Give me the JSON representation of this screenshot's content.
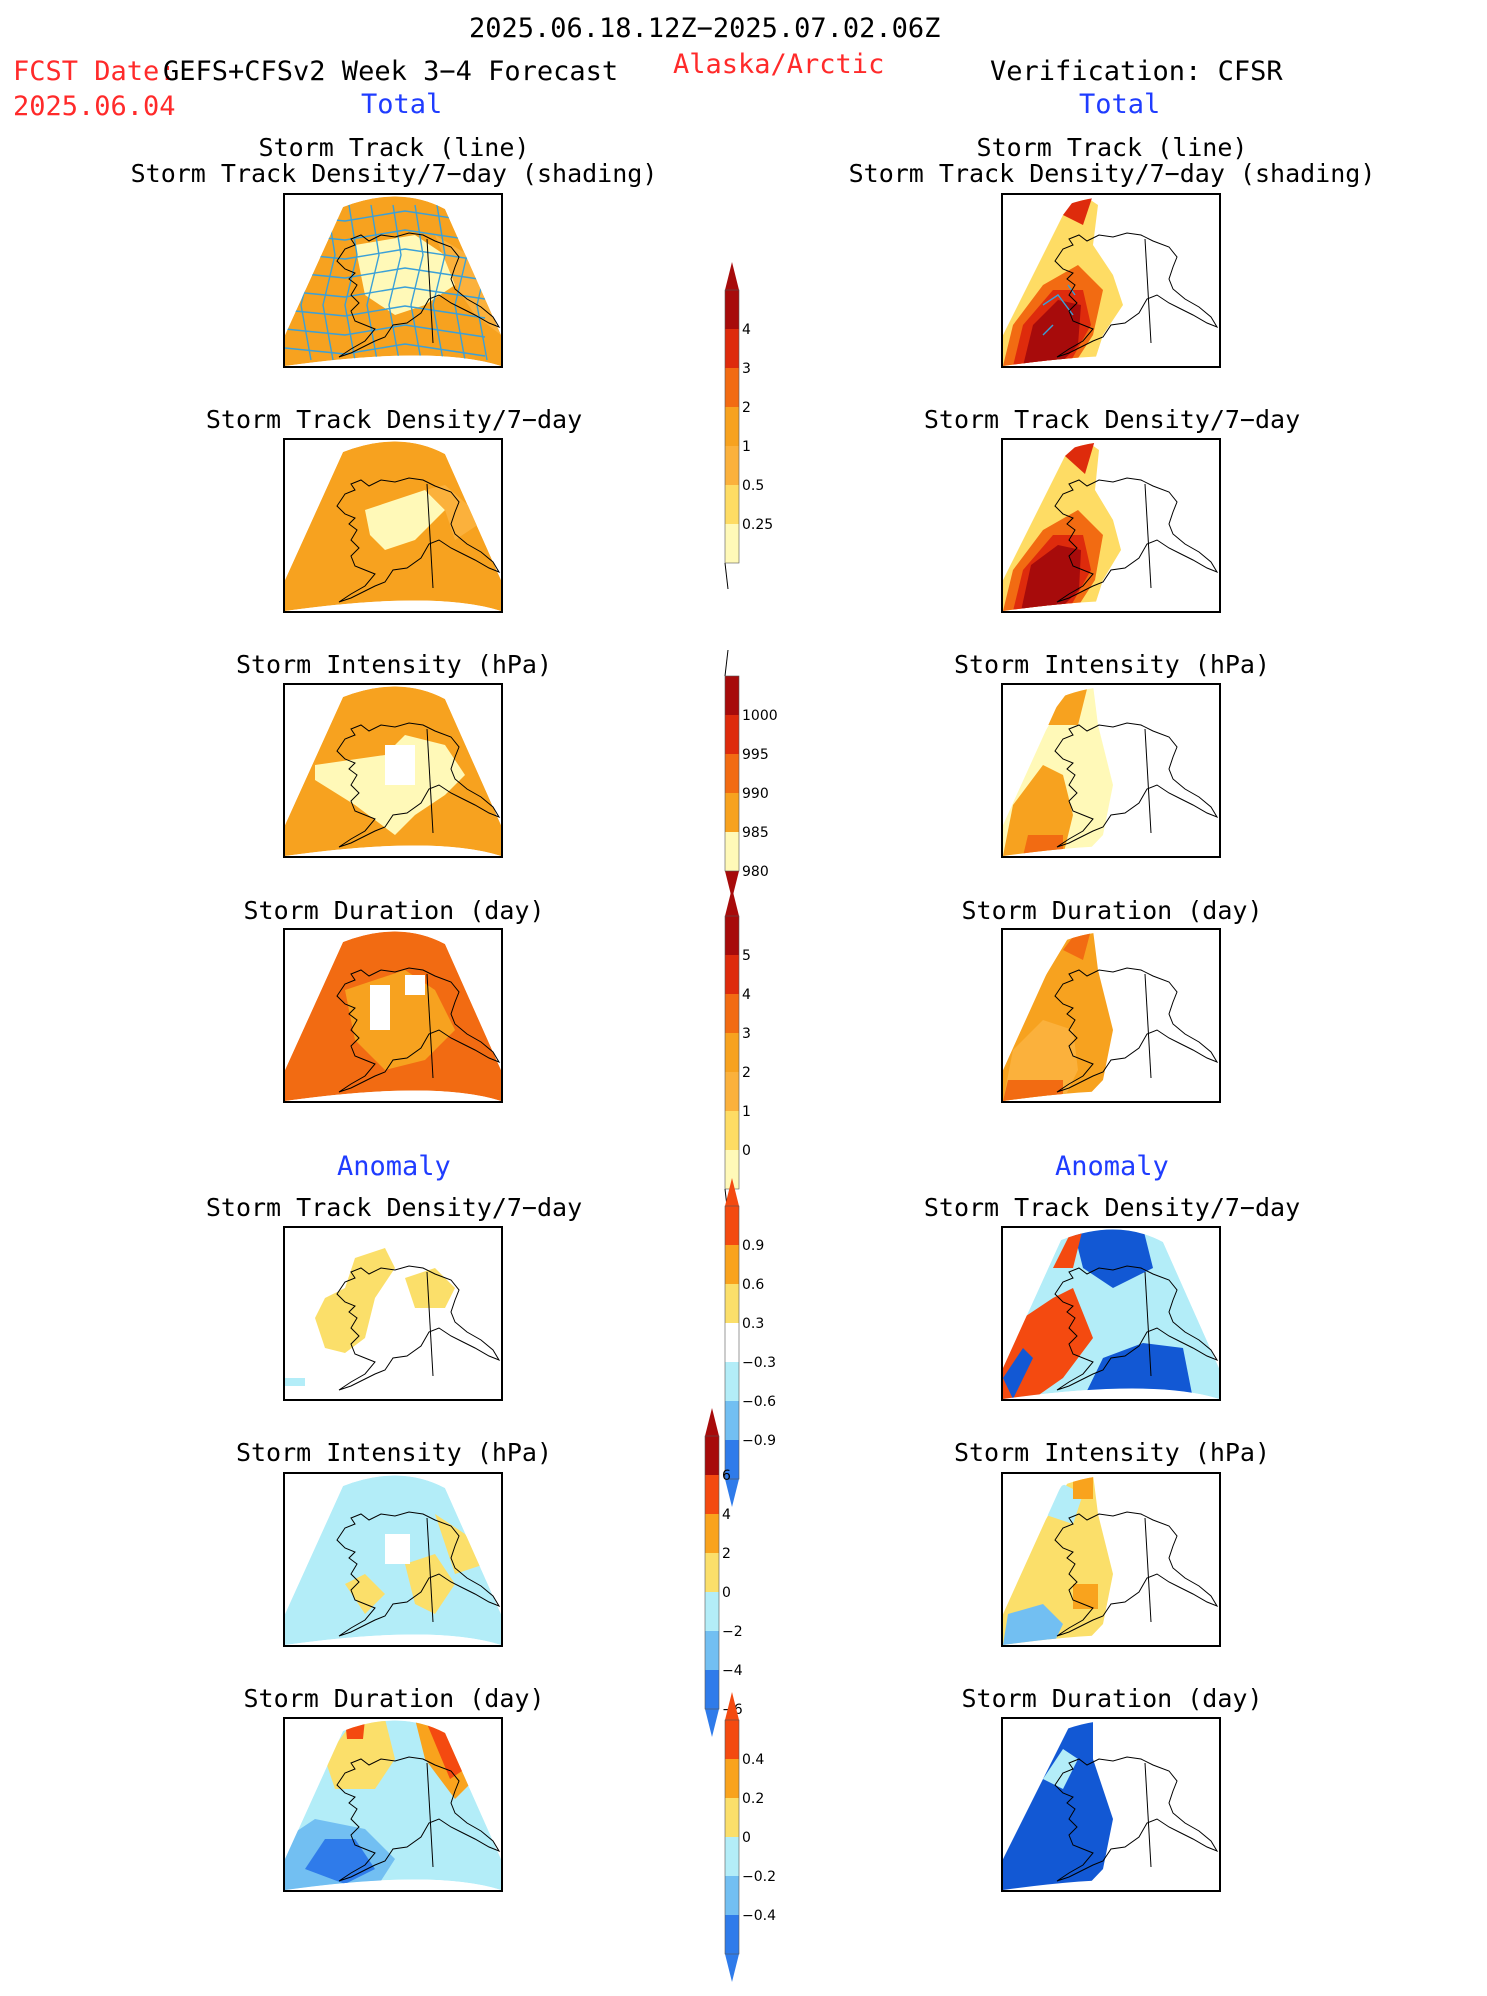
{
  "header": {
    "date_range": "2025.06.18.12Z−2025.07.02.06Z",
    "fcst_label": "FCST Date:",
    "fcst_model": "GEFS+CFSv2 Week 3−4 Forecast",
    "fcst_date": "2025.06.04",
    "region": "Alaska/Arctic",
    "verification": "Verification: CFSR"
  },
  "sections": {
    "total_left": "Total",
    "total_right": "Total",
    "anomaly_left": "Anomaly",
    "anomaly_right": "Anomaly"
  },
  "titles": {
    "track_line": "Storm Track (line)",
    "track_shading": "Storm Track Density/7−day (shading)",
    "density": "Storm Track Density/7−day",
    "intensity": "Storm Intensity (hPa)",
    "duration": "Storm Duration (day)"
  },
  "colors": {
    "c1": "#fff9b8",
    "c2": "#fedc64",
    "c3": "#fbb13c",
    "c4": "#f7a21f",
    "c5": "#f26b12",
    "c6": "#de2b0c",
    "c7": "#a70b0b",
    "a_pos1": "#fbdf6a",
    "a_pos2": "#f9a31d",
    "a_pos3": "#f44a10",
    "a_neg1": "#b3edf8",
    "a_neg2": "#72bff2",
    "a_neg3": "#2f7bea",
    "a_neg4": "#1258d4",
    "track_line": "#3aa0d8"
  },
  "chart_data": [
    {
      "type": "heatmap",
      "id": "total-track-forecast",
      "title": "Storm Track (line) / Storm Track Density/7−day (shading)"
    },
    {
      "type": "heatmap",
      "id": "total-track-cfsr",
      "title": "Storm Track (line) / Storm Track Density/7−day (shading)"
    },
    {
      "type": "heatmap",
      "id": "total-density-forecast",
      "title": "Storm Track Density/7−day"
    },
    {
      "type": "heatmap",
      "id": "total-density-cfsr",
      "title": "Storm Track Density/7−day"
    },
    {
      "type": "heatmap",
      "id": "total-intensity-forecast",
      "title": "Storm Intensity (hPa)"
    },
    {
      "type": "heatmap",
      "id": "total-intensity-cfsr",
      "title": "Storm Intensity (hPa)"
    },
    {
      "type": "heatmap",
      "id": "total-duration-forecast",
      "title": "Storm Duration (day)"
    },
    {
      "type": "heatmap",
      "id": "total-duration-cfsr",
      "title": "Storm Duration (day)"
    },
    {
      "type": "heatmap",
      "id": "anomaly-density-forecast",
      "title": "Storm Track Density/7−day"
    },
    {
      "type": "heatmap",
      "id": "anomaly-density-cfsr",
      "title": "Storm Track Density/7−day"
    },
    {
      "type": "heatmap",
      "id": "anomaly-intensity-forecast",
      "title": "Storm Intensity (hPa)"
    },
    {
      "type": "heatmap",
      "id": "anomaly-intensity-cfsr",
      "title": "Storm Intensity (hPa)"
    },
    {
      "type": "heatmap",
      "id": "anomaly-duration-forecast",
      "title": "Storm Duration (day)"
    },
    {
      "type": "heatmap",
      "id": "anomaly-duration-cfsr",
      "title": "Storm Duration (day)"
    }
  ],
  "colorbars": {
    "density": {
      "labels": [
        "4",
        "3",
        "2",
        "1",
        "0.5",
        "0.25"
      ]
    },
    "intensity": {
      "labels": [
        "1000",
        "995",
        "990",
        "985",
        "980"
      ]
    },
    "duration": {
      "labels": [
        "5",
        "4",
        "3",
        "2",
        "1",
        "0"
      ]
    },
    "anom_density": {
      "labels": [
        "0.9",
        "0.6",
        "0.3",
        "−0.3",
        "−0.6",
        "−0.9"
      ]
    },
    "anom_intensity": {
      "labels": [
        "6",
        "4",
        "2",
        "0",
        "−2",
        "−4",
        "−6"
      ]
    },
    "anom_duration": {
      "labels": [
        "0.4",
        "0.2",
        "0",
        "−0.2",
        "−0.4"
      ]
    }
  }
}
